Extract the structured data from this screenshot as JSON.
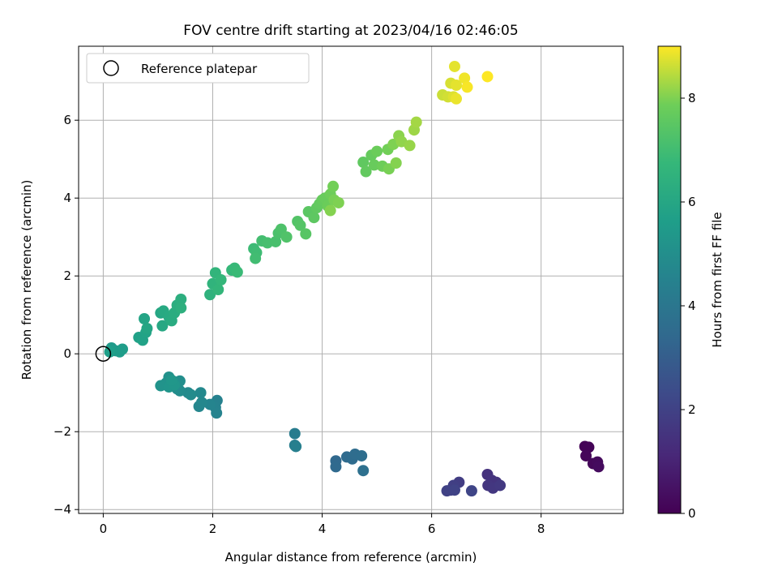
{
  "chart_data": {
    "type": "scatter",
    "title": "FOV centre drift starting at 2023/04/16 02:46:05",
    "xlabel": "Angular distance from reference (arcmin)",
    "ylabel": "Rotation from reference (arcmin)",
    "xlim": [
      -0.45,
      9.5
    ],
    "ylim": [
      -4.1,
      7.9
    ],
    "xticks": [
      0,
      2,
      4,
      6,
      8
    ],
    "yticks": [
      -4,
      -2,
      0,
      2,
      4,
      6
    ],
    "xtick_labels": [
      "0",
      "2",
      "4",
      "6",
      "8"
    ],
    "ytick_labels": [
      "−4",
      "−2",
      "0",
      "2",
      "4",
      "6"
    ],
    "grid": true,
    "colormap": "viridis",
    "legend": {
      "label": "Reference platepar",
      "placement": "top-left"
    },
    "reference_point": {
      "x": 0,
      "y": 0
    },
    "colorbar": {
      "label": "Hours from first FF file",
      "range": [
        0,
        9
      ],
      "ticks": [
        0,
        2,
        4,
        6,
        8
      ],
      "tick_labels": [
        "0",
        "2",
        "4",
        "6",
        "8"
      ]
    },
    "points": [
      {
        "x": 8.8,
        "y": -2.38,
        "h": 0.05
      },
      {
        "x": 8.87,
        "y": -2.4,
        "h": 0.1
      },
      {
        "x": 8.82,
        "y": -2.62,
        "h": 0.15
      },
      {
        "x": 8.95,
        "y": -2.82,
        "h": 0.2
      },
      {
        "x": 9.03,
        "y": -2.78,
        "h": 0.25
      },
      {
        "x": 9.05,
        "y": -2.9,
        "h": 0.3
      },
      {
        "x": 7.02,
        "y": -3.1,
        "h": 1.45
      },
      {
        "x": 7.1,
        "y": -3.25,
        "h": 1.5
      },
      {
        "x": 7.18,
        "y": -3.3,
        "h": 1.55
      },
      {
        "x": 7.03,
        "y": -3.38,
        "h": 1.6
      },
      {
        "x": 7.12,
        "y": -3.45,
        "h": 1.65
      },
      {
        "x": 7.25,
        "y": -3.38,
        "h": 1.7
      },
      {
        "x": 6.5,
        "y": -3.3,
        "h": 1.85
      },
      {
        "x": 6.4,
        "y": -3.38,
        "h": 1.9
      },
      {
        "x": 6.35,
        "y": -3.5,
        "h": 1.95
      },
      {
        "x": 6.28,
        "y": -3.52,
        "h": 2.0
      },
      {
        "x": 6.42,
        "y": -3.5,
        "h": 2.05
      },
      {
        "x": 6.73,
        "y": -3.52,
        "h": 2.1
      },
      {
        "x": 4.25,
        "y": -2.75,
        "h": 3.4
      },
      {
        "x": 4.25,
        "y": -2.9,
        "h": 3.45
      },
      {
        "x": 4.45,
        "y": -2.65,
        "h": 3.5
      },
      {
        "x": 4.55,
        "y": -2.7,
        "h": 3.55
      },
      {
        "x": 4.6,
        "y": -2.58,
        "h": 3.6
      },
      {
        "x": 4.72,
        "y": -2.62,
        "h": 3.65
      },
      {
        "x": 4.75,
        "y": -3.0,
        "h": 3.7
      },
      {
        "x": 3.5,
        "y": -2.05,
        "h": 4.25
      },
      {
        "x": 3.5,
        "y": -2.35,
        "h": 4.3
      },
      {
        "x": 3.52,
        "y": -2.38,
        "h": 4.35
      },
      {
        "x": 2.08,
        "y": -1.2,
        "h": 4.45
      },
      {
        "x": 2.05,
        "y": -1.38,
        "h": 4.5
      },
      {
        "x": 2.07,
        "y": -1.52,
        "h": 4.55
      },
      {
        "x": 1.95,
        "y": -1.3,
        "h": 4.6
      },
      {
        "x": 1.75,
        "y": -1.35,
        "h": 4.65
      },
      {
        "x": 1.8,
        "y": -1.25,
        "h": 4.7
      },
      {
        "x": 1.78,
        "y": -1.0,
        "h": 4.75
      },
      {
        "x": 1.55,
        "y": -1.0,
        "h": 4.8
      },
      {
        "x": 1.6,
        "y": -1.05,
        "h": 4.85
      },
      {
        "x": 1.4,
        "y": -0.95,
        "h": 4.9
      },
      {
        "x": 1.35,
        "y": -0.9,
        "h": 4.95
      },
      {
        "x": 1.4,
        "y": -0.7,
        "h": 5.0
      },
      {
        "x": 1.3,
        "y": -0.72,
        "h": 5.05
      },
      {
        "x": 1.2,
        "y": -0.6,
        "h": 5.1
      },
      {
        "x": 1.15,
        "y": -0.75,
        "h": 5.15
      },
      {
        "x": 1.05,
        "y": -0.82,
        "h": 5.2
      },
      {
        "x": 1.2,
        "y": -0.85,
        "h": 5.25
      },
      {
        "x": 1.3,
        "y": -0.8,
        "h": 5.3
      },
      {
        "x": 1.25,
        "y": -0.68,
        "h": 5.35
      },
      {
        "x": 0.15,
        "y": 0.15,
        "h": 5.45
      },
      {
        "x": 0.22,
        "y": 0.08,
        "h": 5.5
      },
      {
        "x": 0.3,
        "y": 0.05,
        "h": 5.55
      },
      {
        "x": 0.35,
        "y": 0.12,
        "h": 5.6
      },
      {
        "x": 0.12,
        "y": 0.05,
        "h": 5.65
      },
      {
        "x": 0.65,
        "y": 0.42,
        "h": 5.75
      },
      {
        "x": 0.72,
        "y": 0.35,
        "h": 5.8
      },
      {
        "x": 0.78,
        "y": 0.55,
        "h": 5.85
      },
      {
        "x": 0.75,
        "y": 0.9,
        "h": 5.9
      },
      {
        "x": 0.8,
        "y": 0.65,
        "h": 5.95
      },
      {
        "x": 1.05,
        "y": 1.05,
        "h": 6.0
      },
      {
        "x": 1.08,
        "y": 0.72,
        "h": 6.05
      },
      {
        "x": 1.1,
        "y": 1.1,
        "h": 6.1
      },
      {
        "x": 1.2,
        "y": 0.95,
        "h": 6.15
      },
      {
        "x": 1.25,
        "y": 0.85,
        "h": 6.2
      },
      {
        "x": 1.3,
        "y": 1.05,
        "h": 6.25
      },
      {
        "x": 1.35,
        "y": 1.25,
        "h": 6.3
      },
      {
        "x": 1.42,
        "y": 1.4,
        "h": 6.35
      },
      {
        "x": 1.42,
        "y": 1.18,
        "h": 6.4
      },
      {
        "x": 1.95,
        "y": 1.52,
        "h": 6.5
      },
      {
        "x": 2.0,
        "y": 1.8,
        "h": 6.55
      },
      {
        "x": 2.05,
        "y": 2.08,
        "h": 6.6
      },
      {
        "x": 2.1,
        "y": 1.65,
        "h": 6.65
      },
      {
        "x": 2.15,
        "y": 1.9,
        "h": 6.7
      },
      {
        "x": 2.35,
        "y": 2.15,
        "h": 6.75
      },
      {
        "x": 2.4,
        "y": 2.2,
        "h": 6.8
      },
      {
        "x": 2.45,
        "y": 2.1,
        "h": 6.85
      },
      {
        "x": 2.75,
        "y": 2.7,
        "h": 6.9
      },
      {
        "x": 2.8,
        "y": 2.6,
        "h": 6.95
      },
      {
        "x": 2.78,
        "y": 2.45,
        "h": 7.0
      },
      {
        "x": 2.9,
        "y": 2.9,
        "h": 7.05
      },
      {
        "x": 3.0,
        "y": 2.85,
        "h": 7.1
      },
      {
        "x": 3.15,
        "y": 2.88,
        "h": 7.15
      },
      {
        "x": 3.2,
        "y": 3.1,
        "h": 7.2
      },
      {
        "x": 3.25,
        "y": 3.2,
        "h": 7.25
      },
      {
        "x": 3.35,
        "y": 3.0,
        "h": 7.3
      },
      {
        "x": 3.55,
        "y": 3.4,
        "h": 7.35
      },
      {
        "x": 3.6,
        "y": 3.3,
        "h": 7.4
      },
      {
        "x": 3.7,
        "y": 3.08,
        "h": 7.45
      },
      {
        "x": 3.75,
        "y": 3.65,
        "h": 7.5
      },
      {
        "x": 3.85,
        "y": 3.5,
        "h": 7.55
      },
      {
        "x": 3.9,
        "y": 3.75,
        "h": 7.6
      },
      {
        "x": 3.95,
        "y": 3.85,
        "h": 7.65
      },
      {
        "x": 4.0,
        "y": 3.95,
        "h": 7.7
      },
      {
        "x": 4.05,
        "y": 4.0,
        "h": 7.75
      },
      {
        "x": 4.1,
        "y": 3.8,
        "h": 7.8
      },
      {
        "x": 4.15,
        "y": 4.1,
        "h": 7.85
      },
      {
        "x": 4.2,
        "y": 4.3,
        "h": 7.9
      },
      {
        "x": 4.22,
        "y": 3.95,
        "h": 7.95
      },
      {
        "x": 4.3,
        "y": 3.88,
        "h": 8.0
      },
      {
        "x": 4.15,
        "y": 3.68,
        "h": 8.05
      },
      {
        "x": 4.75,
        "y": 4.92,
        "h": 7.6
      },
      {
        "x": 4.8,
        "y": 4.68,
        "h": 7.65
      },
      {
        "x": 4.9,
        "y": 5.1,
        "h": 7.7
      },
      {
        "x": 4.95,
        "y": 4.85,
        "h": 7.75
      },
      {
        "x": 5.0,
        "y": 5.2,
        "h": 7.8
      },
      {
        "x": 5.1,
        "y": 4.82,
        "h": 7.85
      },
      {
        "x": 5.2,
        "y": 5.25,
        "h": 7.9
      },
      {
        "x": 5.22,
        "y": 4.75,
        "h": 7.95
      },
      {
        "x": 5.3,
        "y": 5.38,
        "h": 8.0
      },
      {
        "x": 5.35,
        "y": 4.9,
        "h": 8.05
      },
      {
        "x": 5.4,
        "y": 5.6,
        "h": 8.1
      },
      {
        "x": 5.45,
        "y": 5.45,
        "h": 8.15
      },
      {
        "x": 5.6,
        "y": 5.35,
        "h": 8.2
      },
      {
        "x": 5.68,
        "y": 5.75,
        "h": 8.25
      },
      {
        "x": 5.72,
        "y": 5.95,
        "h": 8.3
      },
      {
        "x": 6.2,
        "y": 6.65,
        "h": 8.6
      },
      {
        "x": 6.3,
        "y": 6.6,
        "h": 8.65
      },
      {
        "x": 6.35,
        "y": 6.95,
        "h": 8.7
      },
      {
        "x": 6.4,
        "y": 6.6,
        "h": 8.75
      },
      {
        "x": 6.42,
        "y": 7.38,
        "h": 8.8
      },
      {
        "x": 6.45,
        "y": 6.55,
        "h": 8.85
      },
      {
        "x": 6.6,
        "y": 7.08,
        "h": 8.9
      },
      {
        "x": 6.65,
        "y": 6.85,
        "h": 8.95
      },
      {
        "x": 7.02,
        "y": 7.12,
        "h": 9.0
      },
      {
        "x": 6.45,
        "y": 6.9,
        "h": 8.8
      }
    ]
  }
}
